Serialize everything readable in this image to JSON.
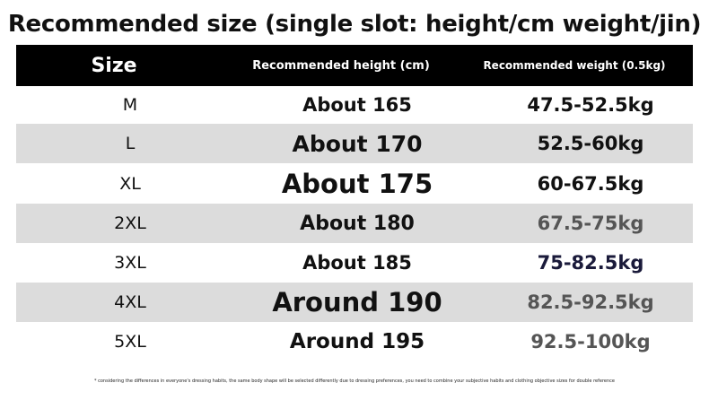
{
  "title": "Recommended size (single slot: height/cm weight/jin)",
  "table": {
    "columns": [
      "Size",
      "Recommended height (cm)",
      "Recommended weight (0.5kg)"
    ],
    "rows": [
      [
        "M",
        "About 165",
        "47.5-52.5kg"
      ],
      [
        "L",
        "About 170",
        "52.5-60kg"
      ],
      [
        "XL",
        "About 175",
        "60-67.5kg"
      ],
      [
        "2XL",
        "About 180",
        "67.5-75kg"
      ],
      [
        "3XL",
        "About 185",
        "75-82.5kg"
      ],
      [
        "4XL",
        "Around 190",
        "82.5-92.5kg"
      ],
      [
        "5XL",
        "Around 195",
        "92.5-100kg"
      ]
    ]
  },
  "footnote": "* considering the differences in everyone's dressing habits, the same body shape will be selected differently due to dressing preferences, you need to combine your subjective habits and clothing objective sizes for double reference"
}
